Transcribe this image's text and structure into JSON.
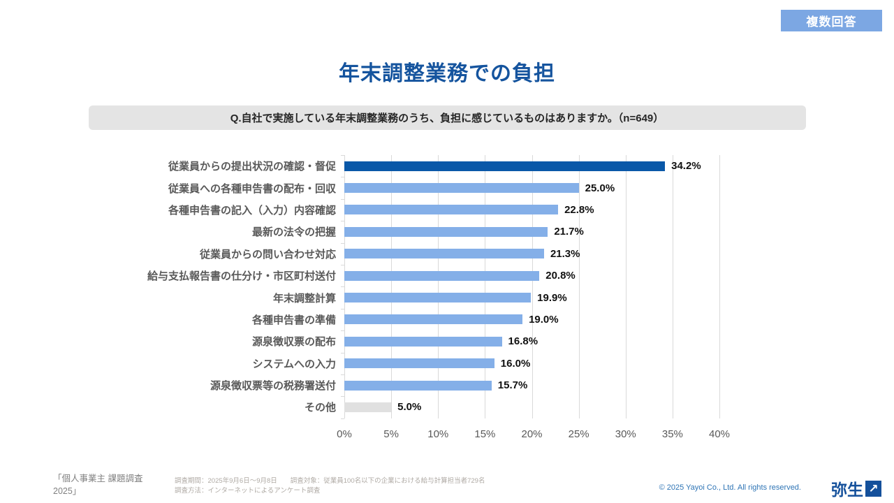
{
  "badge": {
    "label": "複数回答"
  },
  "header": {
    "title": "年末調整業務での負担"
  },
  "question": {
    "text": "Q.自社で実施している年末調整業務のうち、負担に感じているものはありますか。（n=649）"
  },
  "chart_data": {
    "type": "bar",
    "orientation": "horizontal",
    "title": "年末調整業務での負担",
    "categories": [
      "従業員からの提出状況の確認・督促",
      "従業員への各種申告書の配布・回収",
      "各種申告書の記入（入力）内容確認",
      "最新の法令の把握",
      "従業員からの問い合わせ対応",
      "給与支払報告書の仕分け・市区町村送付",
      "年末調整計算",
      "各種申告書の準備",
      "源泉徴収票の配布",
      "システムへの入力",
      "源泉徴収票等の税務署送付",
      "その他"
    ],
    "values": [
      34.2,
      25.0,
      22.8,
      21.7,
      21.3,
      20.8,
      19.9,
      19.0,
      16.8,
      16.0,
      15.7,
      5.0
    ],
    "value_labels": [
      "34.2%",
      "25.0%",
      "22.8%",
      "21.7%",
      "21.3%",
      "20.8%",
      "19.9%",
      "19.0%",
      "16.8%",
      "16.0%",
      "15.7%",
      "5.0%"
    ],
    "xlim": [
      0,
      40
    ],
    "x_ticks": [
      "0%",
      "5%",
      "10%",
      "15%",
      "20%",
      "25%",
      "30%",
      "35%",
      "40%"
    ],
    "grid": true,
    "legend": "none",
    "colors": {
      "highlight_bar": "#0A58A8",
      "default_bar": "#84AFE8",
      "other_bar": "#E0E0E0"
    }
  },
  "footer": {
    "source": "「個人事業主 課題調査 2025」",
    "survey_line1": "調査期間：2025年9月6日～9月8日　　調査対象：従業員100名以下の企業における給与計算担当者729名",
    "survey_line2": "調査方法：インターネットによるアンケート調査",
    "copyright": "© 2025 Yayoi Co., Ltd.  All rights reserved.",
    "logo_text": "弥生",
    "logo_arrow": "↗"
  }
}
